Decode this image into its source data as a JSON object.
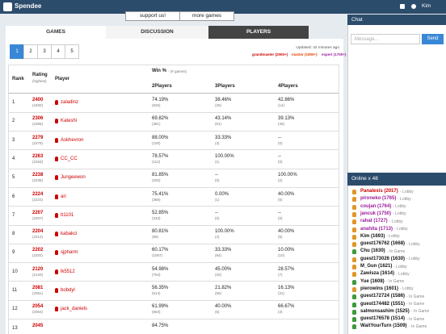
{
  "header": {
    "logo": "Spendee",
    "user": "Kim"
  },
  "buttons": [
    "support us!",
    "more games"
  ],
  "tabs": [
    "GAMES",
    "DISCUSSION",
    "PLAYERS"
  ],
  "pages": [
    "1",
    "2",
    "3",
    "4",
    "5"
  ],
  "updated": "Updated: 42 minutes ago",
  "legend": [
    {
      "label": "grandmaster (2000+)",
      "color": "#cc0000"
    },
    {
      "label": "master (1900+)",
      "color": "#e04000"
    },
    {
      "label": "expert (1700+)",
      "color": "#9b1b9b"
    }
  ],
  "table": {
    "headers": {
      "rank": "Rank",
      "rating": "Rating",
      "rating_sub": "(highest)",
      "player": "Player",
      "win": "Win %",
      "win_sub": "- (# games)",
      "cols": [
        "2Players",
        "3Players",
        "4Players"
      ]
    },
    "rows": [
      {
        "rank": "1",
        "rating": "2400",
        "highest": "(2400)",
        "player": "zaladinz",
        "cells": [
          [
            "74.19%",
            "(926)"
          ],
          [
            "38.46%",
            "(26)"
          ],
          [
            "42.86%",
            "(14)"
          ]
        ]
      },
      {
        "rank": "2",
        "rating": "2306",
        "highest": "(2306)",
        "player": "Kateshi",
        "cells": [
          [
            "69.82%",
            "(381)"
          ],
          [
            "43.14%",
            "(51)"
          ],
          [
            "39.13%",
            "(46)"
          ]
        ]
      },
      {
        "rank": "3",
        "rating": "2279",
        "highest": "(2279)",
        "player": "Askhevron",
        "cells": [
          [
            "88.00%",
            "(100)"
          ],
          [
            "33.33%",
            "(3)"
          ],
          [
            "--",
            "(0)"
          ]
        ]
      },
      {
        "rank": "4",
        "rating": "2263",
        "highest": "(2263)",
        "player": "CC_CC",
        "cells": [
          [
            "78.57%",
            "(112)"
          ],
          [
            "100.00%",
            "(1)"
          ],
          [
            "--",
            "(0)"
          ]
        ]
      },
      {
        "rank": "5",
        "rating": "2238",
        "highest": "(2238)",
        "player": "Jungeewon",
        "cells": [
          [
            "81.85%",
            "(292)"
          ],
          [
            "--",
            "(0)"
          ],
          [
            "100.00%",
            "(2)"
          ]
        ]
      },
      {
        "rank": "6",
        "rating": "2224",
        "highest": "(2224)",
        "player": "ari",
        "cells": [
          [
            "75.41%",
            "(366)"
          ],
          [
            "0.00%",
            "(1)"
          ],
          [
            "40.00%",
            "(5)"
          ]
        ]
      },
      {
        "rank": "7",
        "rating": "2207",
        "highest": "(2207)",
        "player": "tt1101",
        "cells": [
          [
            "52.85%",
            "(333)"
          ],
          [
            "--",
            "(0)"
          ],
          [
            "--",
            "(0)"
          ]
        ]
      },
      {
        "rank": "8",
        "rating": "2204",
        "highest": "(2212)",
        "player": "kabakci",
        "cells": [
          [
            "80.81%",
            "(99)"
          ],
          [
            "100.00%",
            "(4)"
          ],
          [
            "40.00%",
            "(5)"
          ]
        ]
      },
      {
        "rank": "9",
        "rating": "2202",
        "highest": "(2202)",
        "player": "sjpharm",
        "cells": [
          [
            "60.17%",
            "(1057)"
          ],
          [
            "33.33%",
            "(84)"
          ],
          [
            "10.00%",
            "(10)"
          ]
        ]
      },
      {
        "rank": "10",
        "rating": "2120",
        "highest": "(2120)",
        "player": "lk5512",
        "cells": [
          [
            "54.98%",
            "(763)"
          ],
          [
            "45.00%",
            "(20)"
          ],
          [
            "28.57%",
            "(7)"
          ]
        ]
      },
      {
        "rank": "11",
        "rating": "2081",
        "highest": "(2081)",
        "player": "bobdyl",
        "cells": [
          [
            "56.35%",
            "(614)"
          ],
          [
            "21.82%",
            "(55)"
          ],
          [
            "16.13%",
            "(31)"
          ]
        ]
      },
      {
        "rank": "12",
        "rating": "2054",
        "highest": "(2054)",
        "player": "jack_daniels",
        "cells": [
          [
            "61.99%",
            "(663)"
          ],
          [
            "40.00%",
            "(5)"
          ],
          [
            "66.67%",
            "(3)"
          ]
        ]
      },
      {
        "rank": "13",
        "rating": "2045",
        "cells": [
          [
            "84.75%"
          ]
        ]
      }
    ]
  },
  "chat": {
    "title": "Chat",
    "placeholder": "Message...",
    "send": "Send"
  },
  "online": {
    "title": "Online x 48",
    "users": [
      {
        "name": "Panalexis (2017)",
        "status": "- Lobby",
        "color": "#cc0000"
      },
      {
        "name": "pironeko (1765)",
        "status": "- Lobby",
        "color": "#9b1b9b"
      },
      {
        "name": "coujan (1764)",
        "status": "- Lobby",
        "color": "#9b1b9b"
      },
      {
        "name": "jancuk (1750)",
        "status": "- Lobby",
        "color": "#9b1b9b"
      },
      {
        "name": "rahat (1727)",
        "status": "- Lobby",
        "color": "#9b1b9b"
      },
      {
        "name": "anahita (1713)",
        "status": "- Lobby",
        "color": "#9b1b9b"
      },
      {
        "name": "Kim (1693)",
        "status": "- Lobby",
        "color": "#111111"
      },
      {
        "name": "guest176762 (1668)",
        "status": "- Lobby",
        "color": "#111111"
      },
      {
        "name": "Chu (1630)",
        "status": "- In Game",
        "color": "#111111"
      },
      {
        "name": "guest173026 (1630)",
        "status": "- Lobby",
        "color": "#111111"
      },
      {
        "name": "M_Gun (1621)",
        "status": "- Lobby",
        "color": "#111111"
      },
      {
        "name": "Zawisza (1614)",
        "status": "- Lobby",
        "color": "#111111"
      },
      {
        "name": "Yue (1608)",
        "status": "- In Game",
        "color": "#111111"
      },
      {
        "name": "pierowins (1601)",
        "status": "- Lobby",
        "color": "#111111"
      },
      {
        "name": "guest172724 (1586)",
        "status": "- In Game",
        "color": "#111111"
      },
      {
        "name": "guest174482 (1551)",
        "status": "- In Game",
        "color": "#111111"
      },
      {
        "name": "salmonsashim (1525)",
        "status": "- In Game",
        "color": "#111111"
      },
      {
        "name": "guest176578 (1514)",
        "status": "- In Game",
        "color": "#111111"
      },
      {
        "name": "WaitYourTurn (1509)",
        "status": "- In Game",
        "color": "#111111"
      }
    ]
  }
}
